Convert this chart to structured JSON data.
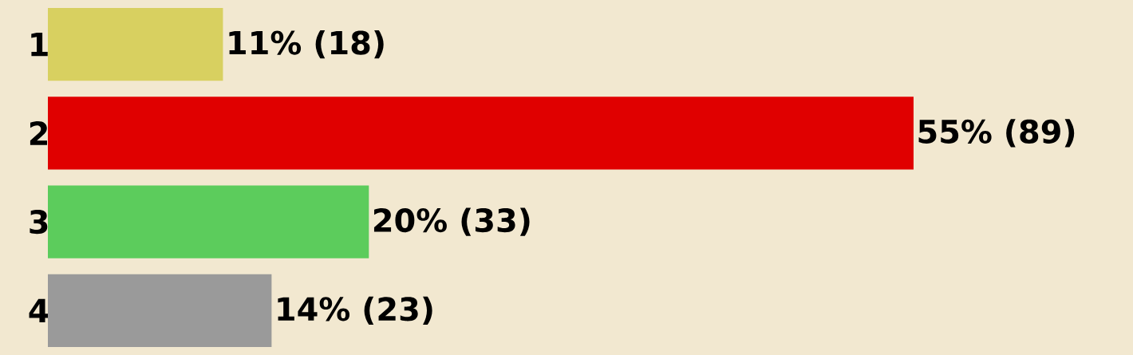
{
  "chart_data": {
    "type": "bar",
    "orientation": "horizontal",
    "categories": [
      "1",
      "2",
      "3",
      "4"
    ],
    "values": [
      18,
      89,
      33,
      23
    ],
    "colors": [
      "#d8d060",
      "#e00000",
      "#5ccc5c",
      "#9a9a9a"
    ],
    "value_labels": [
      "11% (18)",
      "55% (89)",
      "20% (33)",
      "14% (23)"
    ]
  }
}
